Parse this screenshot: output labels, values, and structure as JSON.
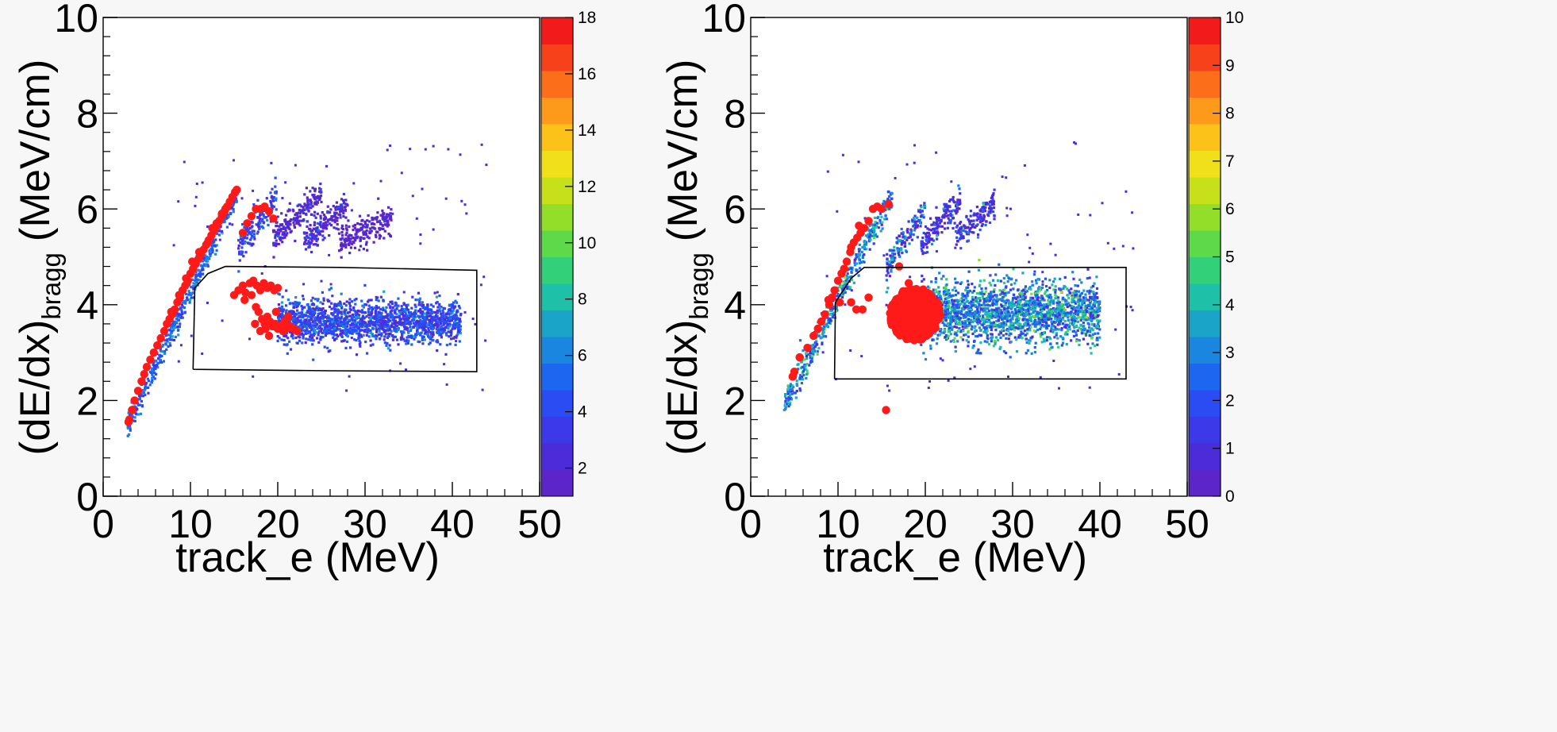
{
  "chart_data": [
    {
      "type": "heatmap",
      "title": "",
      "xlabel": "track_e (MeV)",
      "ylabel_main": "(dE/dx)",
      "ylabel_sub": "bragg",
      "ylabel_unit": "(MeV/cm)",
      "xlim": [
        0,
        50
      ],
      "ylim": [
        0,
        10
      ],
      "xticks": [
        "0",
        "10",
        "20",
        "30",
        "40",
        "50"
      ],
      "yticks": [
        "0",
        "2",
        "4",
        "6",
        "8",
        "10"
      ],
      "colorbar": {
        "range": [
          1,
          18
        ],
        "tick_values": [
          2,
          4,
          6,
          8,
          10,
          12,
          14,
          16,
          18
        ],
        "tick_labels": [
          "2",
          "4",
          "6",
          "8",
          "10",
          "12",
          "14",
          "16",
          "18"
        ]
      },
      "cut_polygon": [
        [
          10.3,
          2.65
        ],
        [
          10.5,
          4.35
        ],
        [
          12.0,
          4.65
        ],
        [
          14.0,
          4.8
        ],
        [
          27.0,
          4.78
        ],
        [
          42.8,
          4.72
        ],
        [
          42.8,
          2.6
        ],
        [
          26.0,
          2.62
        ],
        [
          10.3,
          2.65
        ]
      ],
      "bands": [
        {
          "name": "",
          "x0": 2.8,
          "x1": 15.5,
          "y0": 1.5,
          "y1": 6.4,
          "width": 0.25,
          "intensity": 5
        },
        {
          "name": "",
          "x0": 15.5,
          "x1": 20.0,
          "y0": 5.2,
          "y1": 6.3,
          "width": 0.35,
          "intensity": 4
        },
        {
          "name": "",
          "x0": 19.5,
          "x1": 25.0,
          "y0": 5.4,
          "y1": 6.3,
          "width": 0.3,
          "intensity": 2
        },
        {
          "name": "",
          "x0": 23.0,
          "x1": 28.0,
          "y0": 5.3,
          "y1": 6.1,
          "width": 0.3,
          "intensity": 2
        },
        {
          "name": "",
          "x0": 27.0,
          "x1": 33.0,
          "y0": 5.3,
          "y1": 5.8,
          "width": 0.3,
          "intensity": 1
        }
      ],
      "blobs": [
        {
          "x0": 20.0,
          "x1": 41.0,
          "cy": 3.65,
          "sy": 0.22,
          "count": 1700,
          "intensity": 4
        }
      ],
      "red_points": [
        [
          2.9,
          1.55
        ],
        [
          3.0,
          1.6
        ],
        [
          3.3,
          1.8
        ],
        [
          3.6,
          2.0
        ],
        [
          4.0,
          2.2
        ],
        [
          4.4,
          2.4
        ],
        [
          4.7,
          2.55
        ],
        [
          5.0,
          2.7
        ],
        [
          5.4,
          2.85
        ],
        [
          5.8,
          3.0
        ],
        [
          6.2,
          3.15
        ],
        [
          6.6,
          3.3
        ],
        [
          7.0,
          3.45
        ],
        [
          7.3,
          3.6
        ],
        [
          7.6,
          3.7
        ],
        [
          7.9,
          3.8
        ],
        [
          8.2,
          3.9
        ],
        [
          8.5,
          4.05
        ],
        [
          8.8,
          4.15
        ],
        [
          9.1,
          4.3
        ],
        [
          9.4,
          4.4
        ],
        [
          9.7,
          4.5
        ],
        [
          10.0,
          4.65
        ],
        [
          10.3,
          4.75
        ],
        [
          10.6,
          4.85
        ],
        [
          10.9,
          4.95
        ],
        [
          11.2,
          5.05
        ],
        [
          11.5,
          5.15
        ],
        [
          11.8,
          5.25
        ],
        [
          12.1,
          5.35
        ],
        [
          12.4,
          5.45
        ],
        [
          12.7,
          5.55
        ],
        [
          13.0,
          5.65
        ],
        [
          13.3,
          5.75
        ],
        [
          13.6,
          5.85
        ],
        [
          13.9,
          5.95
        ],
        [
          14.2,
          6.05
        ],
        [
          14.5,
          6.15
        ],
        [
          14.8,
          6.25
        ],
        [
          15.1,
          6.35
        ],
        [
          15.3,
          6.4
        ],
        [
          11.0,
          5.1
        ],
        [
          12.0,
          5.3
        ],
        [
          13.0,
          5.7
        ],
        [
          14.0,
          6.0
        ],
        [
          10.2,
          4.9
        ],
        [
          9.5,
          4.55
        ],
        [
          8.7,
          4.2
        ],
        [
          7.8,
          3.85
        ],
        [
          12.5,
          5.6
        ],
        [
          13.6,
          5.9
        ],
        [
          16.0,
          5.5
        ],
        [
          16.5,
          5.7
        ],
        [
          17.5,
          6.0
        ],
        [
          18.0,
          6.0
        ],
        [
          18.5,
          6.05
        ],
        [
          19.0,
          5.95
        ],
        [
          17.0,
          5.85
        ],
        [
          19.5,
          5.8
        ],
        [
          15.0,
          4.2
        ],
        [
          15.5,
          4.3
        ],
        [
          16.0,
          4.4
        ],
        [
          16.3,
          4.25
        ],
        [
          16.8,
          4.45
        ],
        [
          17.2,
          4.5
        ],
        [
          17.6,
          4.4
        ],
        [
          18.0,
          4.3
        ],
        [
          18.4,
          4.45
        ],
        [
          18.8,
          4.35
        ],
        [
          19.2,
          4.4
        ],
        [
          19.6,
          4.3
        ],
        [
          20.0,
          4.35
        ],
        [
          16.2,
          4.1
        ],
        [
          17.0,
          4.2
        ],
        [
          17.5,
          3.95
        ],
        [
          17.8,
          3.85
        ],
        [
          18.2,
          3.7
        ],
        [
          18.5,
          3.6
        ],
        [
          18.8,
          3.75
        ],
        [
          19.1,
          3.65
        ],
        [
          19.4,
          3.55
        ],
        [
          19.7,
          3.6
        ],
        [
          20.0,
          3.5
        ],
        [
          20.3,
          3.55
        ],
        [
          20.6,
          3.45
        ],
        [
          21.0,
          3.5
        ],
        [
          21.4,
          3.55
        ],
        [
          21.8,
          3.5
        ],
        [
          22.2,
          3.45
        ],
        [
          18.0,
          3.45
        ],
        [
          18.6,
          3.5
        ],
        [
          19.0,
          3.35
        ],
        [
          17.4,
          3.6
        ],
        [
          20.8,
          3.65
        ],
        [
          21.2,
          3.75
        ],
        [
          19.8,
          3.85
        ]
      ],
      "red_clusters": []
    },
    {
      "type": "heatmap",
      "title": "",
      "xlabel": "track_e (MeV)",
      "ylabel_main": "(dE/dx)",
      "ylabel_sub": "bragg",
      "ylabel_unit": "(MeV/cm)",
      "xlim": [
        0,
        50
      ],
      "ylim": [
        0,
        10
      ],
      "xticks": [
        "0",
        "10",
        "20",
        "30",
        "40",
        "50"
      ],
      "yticks": [
        "0",
        "2",
        "4",
        "6",
        "8",
        "10"
      ],
      "colorbar": {
        "range": [
          0,
          10
        ],
        "tick_values": [
          0,
          1,
          2,
          3,
          4,
          5,
          6,
          7,
          8,
          9,
          10
        ],
        "tick_labels": [
          "0",
          "1",
          "2",
          "3",
          "4",
          "5",
          "6",
          "7",
          "8",
          "9",
          "10"
        ]
      },
      "cut_polygon": [
        [
          9.6,
          2.45
        ],
        [
          9.7,
          4.05
        ],
        [
          11.5,
          4.55
        ],
        [
          13.0,
          4.78
        ],
        [
          43.0,
          4.78
        ],
        [
          43.0,
          2.45
        ],
        [
          9.6,
          2.45
        ]
      ],
      "bands": [
        {
          "name": "",
          "x0": 3.8,
          "x1": 16.2,
          "y0": 1.9,
          "y1": 6.3,
          "width": 0.3,
          "intensity": 3
        },
        {
          "name": "",
          "x0": 15.5,
          "x1": 20.0,
          "y0": 4.8,
          "y1": 6.0,
          "width": 0.35,
          "intensity": 2
        },
        {
          "name": "",
          "x0": 19.5,
          "x1": 24.0,
          "y0": 5.2,
          "y1": 6.2,
          "width": 0.3,
          "intensity": 1
        },
        {
          "name": "",
          "x0": 23.5,
          "x1": 28.0,
          "y0": 5.4,
          "y1": 6.1,
          "width": 0.3,
          "intensity": 1
        }
      ],
      "blobs": [
        {
          "x0": 19.5,
          "x1": 40.0,
          "cy": 3.85,
          "sy": 0.32,
          "count": 2000,
          "intensity": 3
        }
      ],
      "red_points": [
        [
          4.8,
          2.5
        ],
        [
          5.0,
          2.6
        ],
        [
          5.6,
          2.9
        ],
        [
          6.5,
          3.1
        ],
        [
          7.2,
          3.35
        ],
        [
          7.7,
          3.5
        ],
        [
          8.1,
          3.65
        ],
        [
          8.5,
          3.8
        ],
        [
          9.0,
          4.0
        ],
        [
          9.3,
          4.15
        ],
        [
          9.6,
          4.3
        ],
        [
          10.0,
          4.5
        ],
        [
          10.4,
          4.65
        ],
        [
          10.7,
          4.75
        ],
        [
          11.0,
          4.9
        ],
        [
          11.4,
          5.1
        ],
        [
          11.8,
          5.3
        ],
        [
          12.2,
          5.4
        ],
        [
          12.6,
          5.5
        ],
        [
          13.0,
          5.6
        ],
        [
          13.5,
          5.75
        ],
        [
          14.0,
          6.0
        ],
        [
          14.5,
          6.05
        ],
        [
          15.0,
          6.0
        ],
        [
          15.8,
          6.1
        ],
        [
          11.5,
          5.2
        ],
        [
          12.4,
          5.65
        ],
        [
          10.2,
          4.05
        ],
        [
          11.5,
          4.05
        ],
        [
          12.1,
          3.9
        ],
        [
          12.8,
          3.9
        ],
        [
          13.5,
          4.15
        ],
        [
          15.5,
          1.8
        ],
        [
          17.0,
          4.8
        ],
        [
          18.1,
          4.45
        ],
        [
          8.9,
          4.1
        ]
      ],
      "red_clusters": [
        {
          "cx": 18.8,
          "cy": 3.8,
          "rx": 2.9,
          "ry": 0.55,
          "count": 500
        }
      ]
    }
  ]
}
